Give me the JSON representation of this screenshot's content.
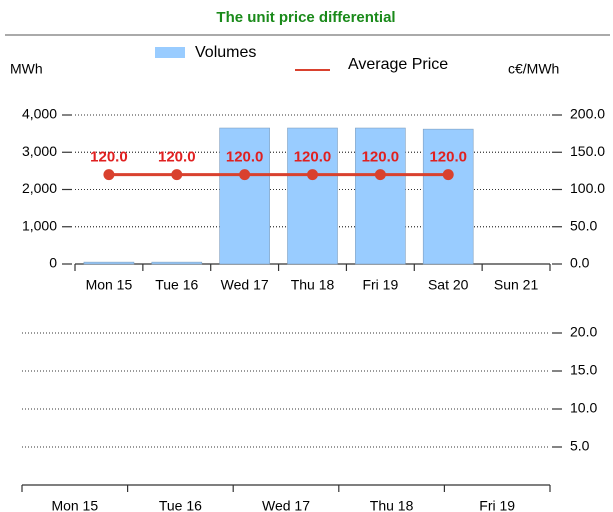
{
  "chart_data": [
    {
      "type": "bar",
      "title": "The unit price differential",
      "categories": [
        "Mon 15",
        "Tue 16",
        "Wed 17",
        "Thu 18",
        "Fri 19",
        "Sat 20",
        "Sun 21"
      ],
      "series": [
        {
          "name": "Volumes",
          "type": "bar",
          "color": "#99ccff",
          "values": [
            50,
            50,
            3650,
            3650,
            3650,
            3620,
            0
          ]
        },
        {
          "name": "Average Price",
          "type": "line",
          "axis": "y2",
          "color": "#d9412e",
          "values": [
            120,
            120,
            120,
            120,
            120,
            120,
            null
          ],
          "value_labels": [
            "120.0",
            "120.0",
            "120.0",
            "120.0",
            "120.0",
            "120.0",
            null
          ]
        }
      ],
      "ylabel": "MWh",
      "y2label": "c€/MWh",
      "ylim": [
        0,
        4000
      ],
      "yticks": [
        0,
        {
          "value": 1000,
          "label": "1,000"
        },
        {
          "value": 2000,
          "label": "2,000"
        },
        {
          "value": 3000,
          "label": "3,000"
        },
        {
          "value": 4000,
          "label": "4,000"
        }
      ],
      "y2lim": [
        0,
        200
      ],
      "y2ticks": [
        {
          "value": 0,
          "label": "0.0"
        },
        {
          "value": 50,
          "label": "50.0"
        },
        {
          "value": 100,
          "label": "100.0"
        },
        {
          "value": 150,
          "label": "150.0"
        },
        {
          "value": 200,
          "label": "200.0"
        }
      ],
      "grid": true
    },
    {
      "type": "line",
      "categories": [
        "Mon 15",
        "Tue 16",
        "Wed 17",
        "Thu 18",
        "Fri 19"
      ],
      "y2lim": [
        0,
        21
      ],
      "y2ticks": [
        {
          "value": 5,
          "label": "5.0"
        },
        {
          "value": 10,
          "label": "10.0"
        },
        {
          "value": 15,
          "label": "15.0"
        },
        {
          "value": 20,
          "label": "20.0"
        }
      ],
      "grid": true
    }
  ]
}
